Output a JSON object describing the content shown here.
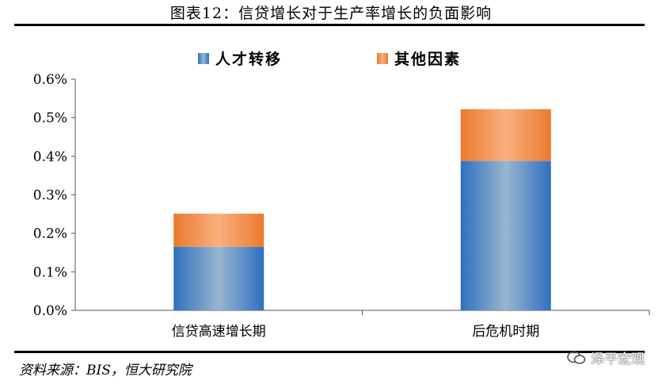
{
  "figure": {
    "title": "图表12：信贷增长对于生产率增长的负面影响",
    "source": "资料来源：BIS，恒大研究院",
    "watermark": "泽平宏观"
  },
  "colors": {
    "series1_edge": "#2f6fc0",
    "series1_mid": "#98b6cf",
    "series2_edge": "#ec7a2e",
    "series2_mid": "#f8b07e"
  },
  "chart_data": {
    "type": "bar",
    "stacked": true,
    "categories": [
      "信贷高速增长期",
      "后危机时期"
    ],
    "series": [
      {
        "name": "人才转移",
        "values": [
          0.165,
          0.388
        ]
      },
      {
        "name": "其他因素",
        "values": [
          0.086,
          0.134
        ]
      }
    ],
    "yticks": [
      "0.0%",
      "0.1%",
      "0.2%",
      "0.3%",
      "0.4%",
      "0.5%",
      "0.6%"
    ],
    "ylim": [
      0,
      0.6
    ],
    "yunit": "%",
    "grid": false,
    "legend_position": "top"
  }
}
